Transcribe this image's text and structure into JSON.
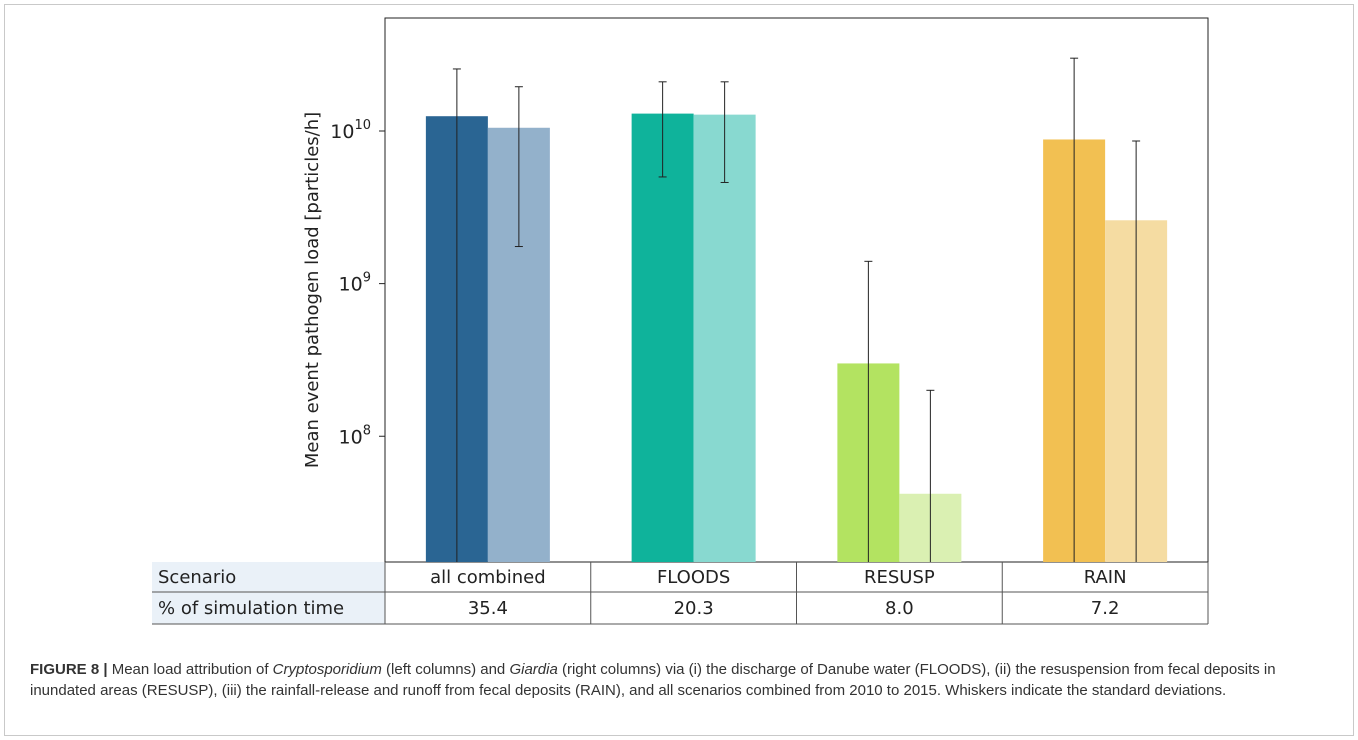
{
  "chart_data": {
    "type": "bar",
    "ylabel": "Mean event pathogen load [particles/h]",
    "yscale": "log",
    "ylim": [
      15000000.0,
      55000000000.0
    ],
    "yticks": [
      {
        "value": 100000000.0,
        "base": "10",
        "exp": "8"
      },
      {
        "value": 1000000000.0,
        "base": "10",
        "exp": "9"
      },
      {
        "value": 10000000000.0,
        "base": "10",
        "exp": "10"
      }
    ],
    "groups": [
      {
        "scenario": "all combined",
        "percent": "35.4",
        "bars": [
          {
            "organism": "Cryptosporidium",
            "value": 12500000000.0,
            "low": 15000000.0,
            "high": 25500000000.0,
            "color": "#2a6593"
          },
          {
            "organism": "Giardia",
            "value": 10500000000.0,
            "low": 1750000000.0,
            "high": 19500000000.0,
            "color": "#93b1cb"
          }
        ]
      },
      {
        "scenario": "FLOODS",
        "percent": "20.3",
        "bars": [
          {
            "organism": "Cryptosporidium",
            "value": 13000000000.0,
            "low": 5000000000.0,
            "high": 21000000000.0,
            "color": "#0fb39b"
          },
          {
            "organism": "Giardia",
            "value": 12800000000.0,
            "low": 4600000000.0,
            "high": 21000000000.0,
            "color": "#88d9d0"
          }
        ]
      },
      {
        "scenario": "RESUSP",
        "percent": "8.0",
        "bars": [
          {
            "organism": "Cryptosporidium",
            "value": 300000000.0,
            "low": 15000000.0,
            "high": 1400000000.0,
            "color": "#b3e361"
          },
          {
            "organism": "Giardia",
            "value": 42000000.0,
            "low": 15000000.0,
            "high": 200000000.0,
            "color": "#daf0b2"
          }
        ]
      },
      {
        "scenario": "RAIN",
        "percent": "7.2",
        "bars": [
          {
            "organism": "Cryptosporidium",
            "value": 8800000000.0,
            "low": 15000000.0,
            "high": 30000000000.0,
            "color": "#f2c052"
          },
          {
            "organism": "Giardia",
            "value": 2600000000.0,
            "low": 15000000.0,
            "high": 8600000000.0,
            "color": "#f5dca2"
          }
        ]
      }
    ],
    "table": {
      "row1_label": "Scenario",
      "row2_label": "% of simulation time"
    }
  },
  "caption": {
    "fig_label": "FIGURE 8 |",
    "part1": " Mean load attribution of ",
    "crypto": "Cryptosporidium",
    "part2": " (left columns) and ",
    "giardia": "Giardia",
    "part3": " (right columns) via (i) the discharge of Danube water (FLOODS), (ii) the resuspension from fecal deposits in inundated areas (RESUSP), (iii) the rainfall-release and runoff from fecal deposits (RAIN), and all scenarios combined from 2010 to 2015. Whiskers indicate the standard deviations."
  }
}
